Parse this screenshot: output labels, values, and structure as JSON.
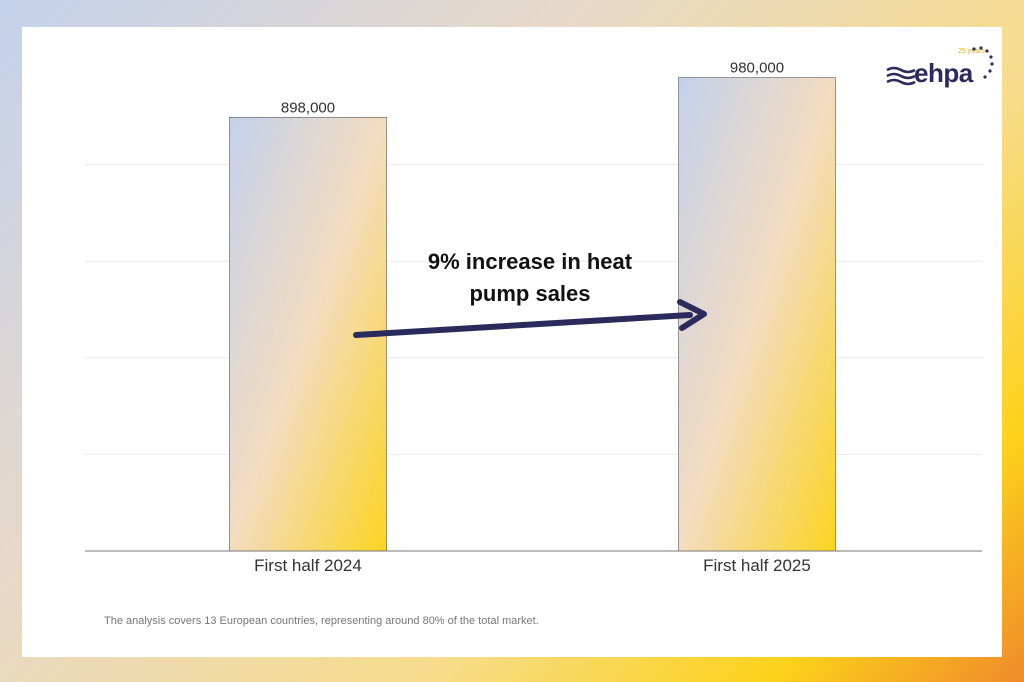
{
  "chart_data": {
    "type": "bar",
    "categories": [
      "First half 2024",
      "First half 2025"
    ],
    "values": [
      898000,
      980000
    ],
    "value_labels": [
      "898,000",
      "980,000"
    ],
    "title": "",
    "xlabel": "",
    "ylabel": "",
    "ylim": [
      0,
      1000000
    ],
    "gridlines": [
      200000,
      400000,
      600000,
      800000
    ],
    "grid": true,
    "annotation": "9% increase in heat pump sales",
    "bar_gradient": [
      "#c3d1ec",
      "#f3dcc0",
      "#fcd421"
    ],
    "arrow_color": "#2b2a5c"
  },
  "footnote": "The analysis covers 13 European countries, representing around 80% of the total market.",
  "logo": {
    "text": "ehpa",
    "sub": "25 years"
  }
}
